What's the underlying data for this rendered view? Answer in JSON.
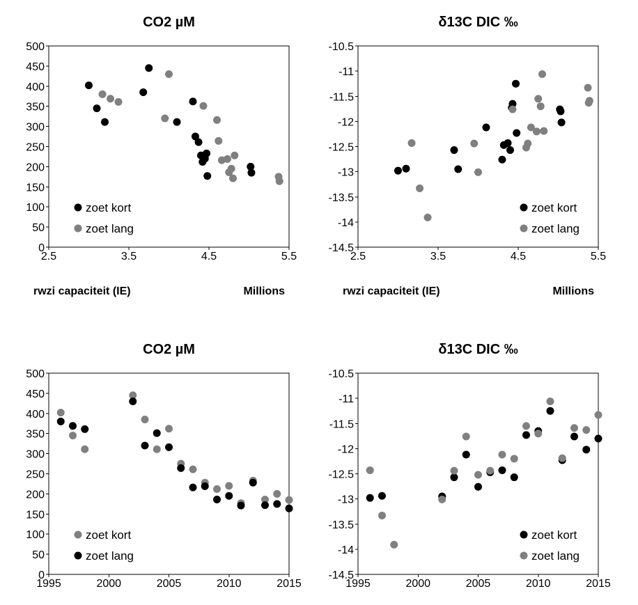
{
  "chart_data": [
    {
      "type": "scatter",
      "title": "CO2 µM",
      "xlabel": "rwzi capaciteit (IE)",
      "x_unit_label": "Millions",
      "xlim": [
        2.5,
        5.5
      ],
      "ylim": [
        0,
        500
      ],
      "x_ticks": [
        "2.5",
        "3.5",
        "4.5",
        "5.5"
      ],
      "y_ticks": [
        "0",
        "50",
        "100",
        "150",
        "200",
        "250",
        "300",
        "350",
        "400",
        "450",
        "500"
      ],
      "legend_position": "bottom-left",
      "series": [
        {
          "name": "zoet kort",
          "color": "#000000",
          "points": [
            [
              3.0,
              402
            ],
            [
              3.1,
              345
            ],
            [
              3.2,
              311
            ],
            [
              3.68,
              385
            ],
            [
              3.75,
              445
            ],
            [
              4.1,
              311
            ],
            [
              4.3,
              362
            ],
            [
              4.33,
              275
            ],
            [
              4.37,
              261
            ],
            [
              4.4,
              228
            ],
            [
              4.42,
              212
            ],
            [
              4.45,
              220
            ],
            [
              4.47,
              233
            ],
            [
              4.48,
              177
            ],
            [
              5.02,
              200
            ],
            [
              5.03,
              185
            ]
          ]
        },
        {
          "name": "zoet lang",
          "color": "#808080",
          "points": [
            [
              3.17,
              380
            ],
            [
              3.27,
              369
            ],
            [
              3.37,
              361
            ],
            [
              3.95,
              320
            ],
            [
              4.0,
              430
            ],
            [
              4.43,
              351
            ],
            [
              4.6,
              316
            ],
            [
              4.62,
              264
            ],
            [
              4.66,
              216
            ],
            [
              4.73,
              219
            ],
            [
              4.75,
              186
            ],
            [
              4.78,
              195
            ],
            [
              4.8,
              171
            ],
            [
              4.82,
              228
            ],
            [
              5.37,
              175
            ],
            [
              5.38,
              164
            ]
          ]
        }
      ]
    },
    {
      "type": "scatter",
      "title": "δ13C DIC ‰",
      "xlabel": "rwzi capaciteit (IE)",
      "x_unit_label": "Millions",
      "xlim": [
        2.5,
        5.5
      ],
      "ylim": [
        -14.5,
        -10.5
      ],
      "x_ticks": [
        "2.5",
        "3.5",
        "4.5",
        "5.5"
      ],
      "y_ticks": [
        "-14.5",
        "-14",
        "-13.5",
        "-13",
        "-12.5",
        "-12",
        "-11.5",
        "-11",
        "-10.5"
      ],
      "legend_position": "bottom-right",
      "series": [
        {
          "name": "zoet kort",
          "color": "#000000",
          "points": [
            [
              3.0,
              -12.98
            ],
            [
              3.1,
              -12.94
            ],
            [
              3.7,
              -12.57
            ],
            [
              3.75,
              -12.95
            ],
            [
              4.1,
              -12.12
            ],
            [
              4.3,
              -12.76
            ],
            [
              4.32,
              -12.47
            ],
            [
              4.37,
              -12.43
            ],
            [
              4.4,
              -12.57
            ],
            [
              4.42,
              -11.73
            ],
            [
              4.43,
              -11.65
            ],
            [
              4.47,
              -11.25
            ],
            [
              4.48,
              -12.23
            ],
            [
              5.02,
              -11.76
            ],
            [
              5.03,
              -11.8
            ],
            [
              5.04,
              -12.02
            ]
          ]
        },
        {
          "name": "zoet lang",
          "color": "#808080",
          "points": [
            [
              3.17,
              -12.43
            ],
            [
              3.27,
              -13.33
            ],
            [
              3.37,
              -13.91
            ],
            [
              3.95,
              -12.44
            ],
            [
              4.0,
              -13.01
            ],
            [
              4.43,
              -11.76
            ],
            [
              4.6,
              -12.52
            ],
            [
              4.62,
              -12.44
            ],
            [
              4.66,
              -12.12
            ],
            [
              4.73,
              -12.2
            ],
            [
              4.75,
              -11.55
            ],
            [
              4.78,
              -11.7
            ],
            [
              4.8,
              -11.06
            ],
            [
              4.82,
              -12.19
            ],
            [
              5.37,
              -11.33
            ],
            [
              5.38,
              -11.63
            ],
            [
              5.39,
              -11.59
            ]
          ]
        }
      ]
    },
    {
      "type": "scatter",
      "title": "CO2 µM",
      "xlabel": "",
      "x_unit_label": "",
      "xlim": [
        1995,
        2015
      ],
      "ylim": [
        0,
        500
      ],
      "x_ticks": [
        "1995",
        "2000",
        "2005",
        "2010",
        "2015"
      ],
      "y_ticks": [
        "0",
        "50",
        "100",
        "150",
        "200",
        "250",
        "300",
        "350",
        "400",
        "450",
        "500"
      ],
      "legend_position": "bottom-left",
      "series": [
        {
          "name": "zoet kort",
          "color": "#808080",
          "points": [
            [
              1996,
              402
            ],
            [
              1997,
              345
            ],
            [
              1998,
              311
            ],
            [
              2002,
              445
            ],
            [
              2003,
              385
            ],
            [
              2004,
              311
            ],
            [
              2005,
              362
            ],
            [
              2006,
              275
            ],
            [
              2007,
              261
            ],
            [
              2008,
              228
            ],
            [
              2009,
              212
            ],
            [
              2010,
              220
            ],
            [
              2011,
              177
            ],
            [
              2012,
              233
            ],
            [
              2013,
              186
            ],
            [
              2014,
              200
            ],
            [
              2015,
              185
            ]
          ]
        },
        {
          "name": "zoet lang",
          "color": "#000000",
          "points": [
            [
              1996,
              380
            ],
            [
              1997,
              369
            ],
            [
              1998,
              361
            ],
            [
              2002,
              430
            ],
            [
              2003,
              320
            ],
            [
              2004,
              351
            ],
            [
              2005,
              316
            ],
            [
              2006,
              264
            ],
            [
              2007,
              216
            ],
            [
              2008,
              219
            ],
            [
              2009,
              186
            ],
            [
              2010,
              195
            ],
            [
              2011,
              171
            ],
            [
              2012,
              228
            ],
            [
              2013,
              172
            ],
            [
              2014,
              175
            ],
            [
              2015,
              164
            ]
          ]
        }
      ]
    },
    {
      "type": "scatter",
      "title": "δ13C DIC ‰",
      "xlabel": "",
      "x_unit_label": "",
      "xlim": [
        1995,
        2015
      ],
      "ylim": [
        -14.5,
        -10.5
      ],
      "x_ticks": [
        "1995",
        "2000",
        "2005",
        "2010",
        "2015"
      ],
      "y_ticks": [
        "-14.5",
        "-14",
        "-13.5",
        "-13",
        "-12.5",
        "-12",
        "-11.5",
        "-11",
        "-10.5"
      ],
      "legend_position": "bottom-right",
      "series": [
        {
          "name": "zoet kort",
          "color": "#000000",
          "points": [
            [
              1996,
              -12.98
            ],
            [
              1997,
              -12.94
            ],
            [
              2002,
              -12.95
            ],
            [
              2003,
              -12.57
            ],
            [
              2004,
              -12.12
            ],
            [
              2005,
              -12.76
            ],
            [
              2006,
              -12.47
            ],
            [
              2007,
              -12.43
            ],
            [
              2008,
              -12.57
            ],
            [
              2009,
              -11.73
            ],
            [
              2010,
              -11.65
            ],
            [
              2011,
              -11.25
            ],
            [
              2012,
              -12.23
            ],
            [
              2013,
              -11.76
            ],
            [
              2014,
              -12.02
            ],
            [
              2015,
              -11.8
            ]
          ]
        },
        {
          "name": "zoet lang",
          "color": "#808080",
          "points": [
            [
              1996,
              -12.43
            ],
            [
              1997,
              -13.33
            ],
            [
              1998,
              -13.91
            ],
            [
              2002,
              -13.01
            ],
            [
              2003,
              -12.44
            ],
            [
              2004,
              -11.76
            ],
            [
              2005,
              -12.52
            ],
            [
              2006,
              -12.44
            ],
            [
              2007,
              -12.12
            ],
            [
              2008,
              -12.2
            ],
            [
              2009,
              -11.55
            ],
            [
              2010,
              -11.7
            ],
            [
              2011,
              -11.06
            ],
            [
              2012,
              -12.19
            ],
            [
              2013,
              -11.59
            ],
            [
              2014,
              -11.63
            ],
            [
              2015,
              -11.33
            ]
          ]
        }
      ]
    }
  ]
}
